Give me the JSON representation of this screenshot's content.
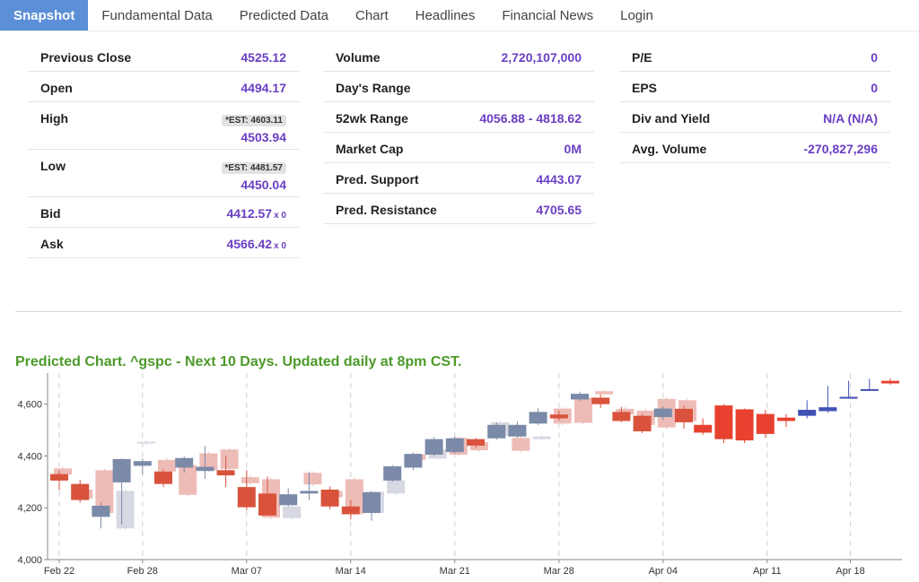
{
  "tabs": [
    {
      "label": "Snapshot",
      "active": true
    },
    {
      "label": "Fundamental Data",
      "active": false
    },
    {
      "label": "Predicted Data",
      "active": false
    },
    {
      "label": "Chart",
      "active": false
    },
    {
      "label": "Headlines",
      "active": false
    },
    {
      "label": "Financial News",
      "active": false
    },
    {
      "label": "Login",
      "active": false
    }
  ],
  "snapshot": {
    "col1": {
      "prev_close": {
        "label": "Previous Close",
        "value": "4525.12"
      },
      "open": {
        "label": "Open",
        "value": "4494.17"
      },
      "high": {
        "label": "High",
        "est": "*EST: 4603.11",
        "value": "4503.94"
      },
      "low": {
        "label": "Low",
        "est": "*EST: 4481.57",
        "value": "4450.04"
      },
      "bid": {
        "label": "Bid",
        "value": "4412.57",
        "mult": "x 0"
      },
      "ask": {
        "label": "Ask",
        "value": "4566.42",
        "mult": "x 0"
      }
    },
    "col2": {
      "volume": {
        "label": "Volume",
        "value": "2,720,107,000"
      },
      "days_range": {
        "label": "Day's Range",
        "value": ""
      },
      "wk52_range": {
        "label": "52wk Range",
        "value": "4056.88 - 4818.62"
      },
      "market_cap": {
        "label": "Market Cap",
        "value": "0M"
      },
      "pred_support": {
        "label": "Pred. Support",
        "value": "4443.07"
      },
      "pred_resistance": {
        "label": "Pred. Resistance",
        "value": "4705.65"
      }
    },
    "col3": {
      "pe": {
        "label": "P/E",
        "value": "0"
      },
      "eps": {
        "label": "EPS",
        "value": "0"
      },
      "div_yield": {
        "label": "Div and Yield",
        "value": "N/A (N/A)"
      },
      "avg_volume": {
        "label": "Avg. Volume",
        "value": "-270,827,296"
      }
    }
  },
  "chart_title": "Predicted Chart. ^gspc - Next 10 Days. Updated daily at 8pm CST.",
  "colors": {
    "accent_tab": "#5b8fd7",
    "value_purple": "#6a3fc4",
    "title_green": "#4c9a2a",
    "up_strong": "#7b8aa8",
    "down_strong": "#d9533c",
    "up_faded": "#d6d9e1",
    "down_faded": "#eebcb7",
    "pred_up": "#4051b5",
    "pred_down": "#e8412f"
  },
  "chart_data": {
    "type": "candlestick",
    "title": "Predicted Chart. ^gspc - Next 10 Days. Updated daily at 8pm CST.",
    "ylim": [
      4000,
      4720
    ],
    "y_ticks": [
      "4,000",
      "4,200",
      "4,400",
      "4,600"
    ],
    "x_ticks": [
      {
        "index": 0,
        "label": "Feb 22"
      },
      {
        "index": 4,
        "label": "Feb 28"
      },
      {
        "index": 9,
        "label": "Mar 07"
      },
      {
        "index": 14,
        "label": "Mar 14"
      },
      {
        "index": 19,
        "label": "Mar 21"
      },
      {
        "index": 24,
        "label": "Mar 28"
      },
      {
        "index": 29,
        "label": "Apr 04"
      },
      {
        "index": 34,
        "label": "Apr 11"
      },
      {
        "index": 38,
        "label": "Apr 18"
      }
    ],
    "actual": [
      {
        "o": 4330,
        "c": 4305,
        "h": 4342,
        "l": 4268,
        "f": 4352,
        "fc": 4328
      },
      {
        "o": 4292,
        "c": 4230,
        "h": 4308,
        "l": 4220,
        "f": 4270,
        "fc": 4235
      },
      {
        "o": 4165,
        "c": 4208,
        "h": 4222,
        "l": 4120,
        "f": 4345,
        "fc": 4180
      },
      {
        "o": 4298,
        "c": 4388,
        "h": 4390,
        "l": 4135,
        "f": 4120,
        "fc": 4265
      },
      {
        "o": 4362,
        "c": 4380,
        "h": 4390,
        "l": 4330,
        "f": 4450,
        "fc": 4455
      },
      {
        "o": 4340,
        "c": 4292,
        "h": 4350,
        "l": 4280,
        "f": 4385,
        "fc": 4340
      },
      {
        "o": 4355,
        "c": 4392,
        "h": 4398,
        "l": 4335,
        "f": 4365,
        "fc": 4250
      },
      {
        "o": 4342,
        "c": 4358,
        "h": 4438,
        "l": 4312,
        "f": 4410,
        "fc": 4345
      },
      {
        "o": 4345,
        "c": 4325,
        "h": 4400,
        "l": 4280,
        "f": 4425,
        "fc": 4350
      },
      {
        "o": 4280,
        "c": 4202,
        "h": 4345,
        "l": 4190,
        "f": 4318,
        "fc": 4295
      },
      {
        "o": 4255,
        "c": 4170,
        "h": 4320,
        "l": 4170,
        "f": 4310,
        "fc": 4162
      },
      {
        "o": 4210,
        "c": 4252,
        "h": 4275,
        "l": 4205,
        "f": 4160,
        "fc": 4205
      },
      {
        "o": 4255,
        "c": 4265,
        "h": 4340,
        "l": 4230,
        "f": 4335,
        "fc": 4290
      },
      {
        "o": 4270,
        "c": 4205,
        "h": 4282,
        "l": 4195,
        "f": 4265,
        "fc": 4240
      },
      {
        "o": 4205,
        "c": 4175,
        "h": 4230,
        "l": 4155,
        "f": 4310,
        "fc": 4175
      },
      {
        "o": 4180,
        "c": 4260,
        "h": 4265,
        "l": 4150,
        "f": 4180,
        "fc": 4262
      },
      {
        "o": 4305,
        "c": 4360,
        "h": 4365,
        "l": 4300,
        "f": 4255,
        "fc": 4305
      },
      {
        "o": 4355,
        "c": 4408,
        "h": 4413,
        "l": 4345,
        "f": 4405,
        "fc": 4385
      },
      {
        "o": 4405,
        "c": 4465,
        "h": 4473,
        "l": 4400,
        "f": 4390,
        "fc": 4425
      },
      {
        "o": 4415,
        "c": 4468,
        "h": 4475,
        "l": 4410,
        "f": 4470,
        "fc": 4405
      },
      {
        "o": 4465,
        "c": 4440,
        "h": 4470,
        "l": 4432,
        "f": 4453,
        "fc": 4422
      },
      {
        "o": 4468,
        "c": 4520,
        "h": 4530,
        "l": 4462,
        "f": 4478,
        "fc": 4530
      },
      {
        "o": 4475,
        "c": 4520,
        "h": 4533,
        "l": 4470,
        "f": 4470,
        "fc": 4420
      },
      {
        "o": 4525,
        "c": 4570,
        "h": 4584,
        "l": 4520,
        "f": 4465,
        "fc": 4475
      },
      {
        "o": 4560,
        "c": 4545,
        "h": 4575,
        "l": 4537,
        "f": 4583,
        "fc": 4525
      },
      {
        "o": 4618,
        "c": 4640,
        "h": 4648,
        "l": 4612,
        "f": 4625,
        "fc": 4528
      },
      {
        "o": 4625,
        "c": 4600,
        "h": 4638,
        "l": 4585,
        "f": 4650,
        "fc": 4638
      },
      {
        "o": 4570,
        "c": 4535,
        "h": 4590,
        "l": 4530,
        "f": 4582,
        "fc": 4560
      },
      {
        "o": 4555,
        "c": 4495,
        "h": 4562,
        "l": 4488,
        "f": 4575,
        "fc": 4520
      },
      {
        "o": 4550,
        "c": 4583,
        "h": 4592,
        "l": 4538,
        "f": 4620,
        "fc": 4510
      },
      {
        "o": 4582,
        "c": 4530,
        "h": 4594,
        "l": 4505,
        "f": 4615,
        "fc": 4535
      }
    ],
    "predicted": [
      {
        "o": 4520,
        "c": 4490,
        "h": 4545,
        "l": 4482
      },
      {
        "o": 4595,
        "c": 4465,
        "h": 4600,
        "l": 4450
      },
      {
        "o": 4580,
        "c": 4460,
        "h": 4583,
        "l": 4450
      },
      {
        "o": 4562,
        "c": 4485,
        "h": 4578,
        "l": 4470
      },
      {
        "o": 4548,
        "c": 4535,
        "h": 4562,
        "l": 4512
      },
      {
        "o": 4555,
        "c": 4578,
        "h": 4615,
        "l": 4545
      },
      {
        "o": 4573,
        "c": 4588,
        "h": 4670,
        "l": 4567
      },
      {
        "o": 4625,
        "c": 4628,
        "h": 4690,
        "l": 4622
      },
      {
        "o": 4655,
        "c": 4658,
        "h": 4698,
        "l": 4654
      },
      {
        "o": 4690,
        "c": 4680,
        "h": 4700,
        "l": 4675
      }
    ]
  }
}
